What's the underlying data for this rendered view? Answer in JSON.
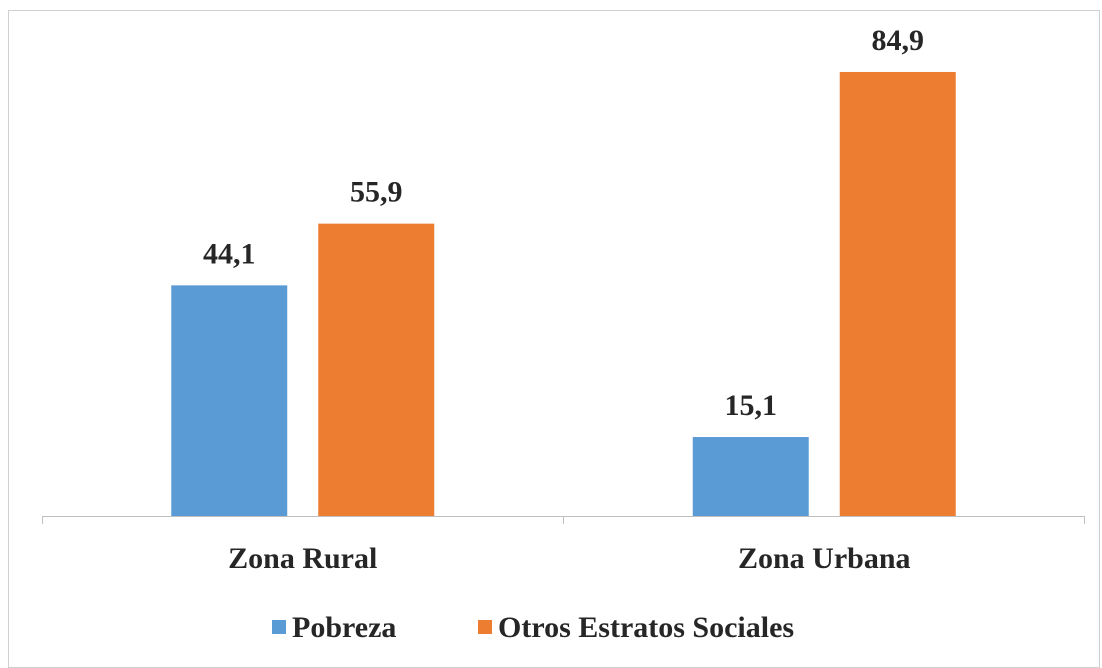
{
  "chart_data": {
    "type": "bar",
    "categories": [
      "Zona Rural",
      "Zona Urbana"
    ],
    "series": [
      {
        "name": "Pobreza",
        "color": "#5b9bd5",
        "values": [
          44.1,
          15.1
        ],
        "value_labels": [
          "44,1",
          "15,1"
        ]
      },
      {
        "name": "Otros Estratos Sociales",
        "color": "#ed7d31",
        "values": [
          55.9,
          84.9
        ],
        "value_labels": [
          "55,9",
          "84,9"
        ]
      }
    ],
    "legend": "bottom"
  }
}
